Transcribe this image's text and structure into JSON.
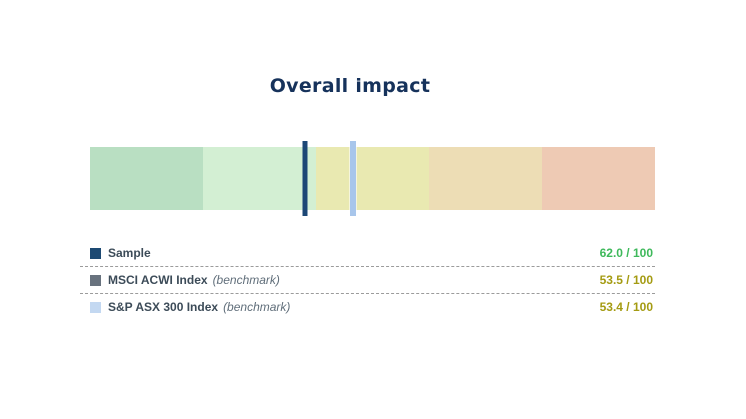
{
  "title": "Overall impact",
  "chart_data": {
    "type": "linear-gauge",
    "title": "Overall impact",
    "scale": {
      "min": 0,
      "max": 100,
      "orientation": "horizontal",
      "direction": "max-on-left"
    },
    "bands": [
      {
        "label": "quintile-100-80",
        "range": [
          100,
          80
        ],
        "color": "#b9dfc2"
      },
      {
        "label": "quintile-80-60",
        "range": [
          80,
          60
        ],
        "color": "#d3efd3"
      },
      {
        "label": "quintile-60-40",
        "range": [
          60,
          40
        ],
        "color": "#e9e9b1"
      },
      {
        "label": "quintile-40-20",
        "range": [
          40,
          20
        ],
        "color": "#edddb5"
      },
      {
        "label": "quintile-20-0",
        "range": [
          20,
          0
        ],
        "color": "#eecab4"
      }
    ],
    "series": [
      {
        "name": "Sample",
        "suffix": "",
        "value": 62.0,
        "display": "62.0 / 100",
        "marker_color": "#1c4776",
        "swatch_color": "#1d4a73",
        "value_color": "#3eb95b"
      },
      {
        "name": "MSCI ACWI Index",
        "suffix": "(benchmark)",
        "value": 53.5,
        "display": "53.5 / 100",
        "marker_color": "#68727e",
        "swatch_color": "#68727e",
        "value_color": "#a49b12"
      },
      {
        "name": "S&P ASX 300 Index",
        "suffix": "(benchmark)",
        "value": 53.4,
        "display": "53.4 / 100",
        "marker_color": "#a8c6eb",
        "swatch_color": "#c3d8f1",
        "value_color": "#a49b12"
      }
    ]
  }
}
